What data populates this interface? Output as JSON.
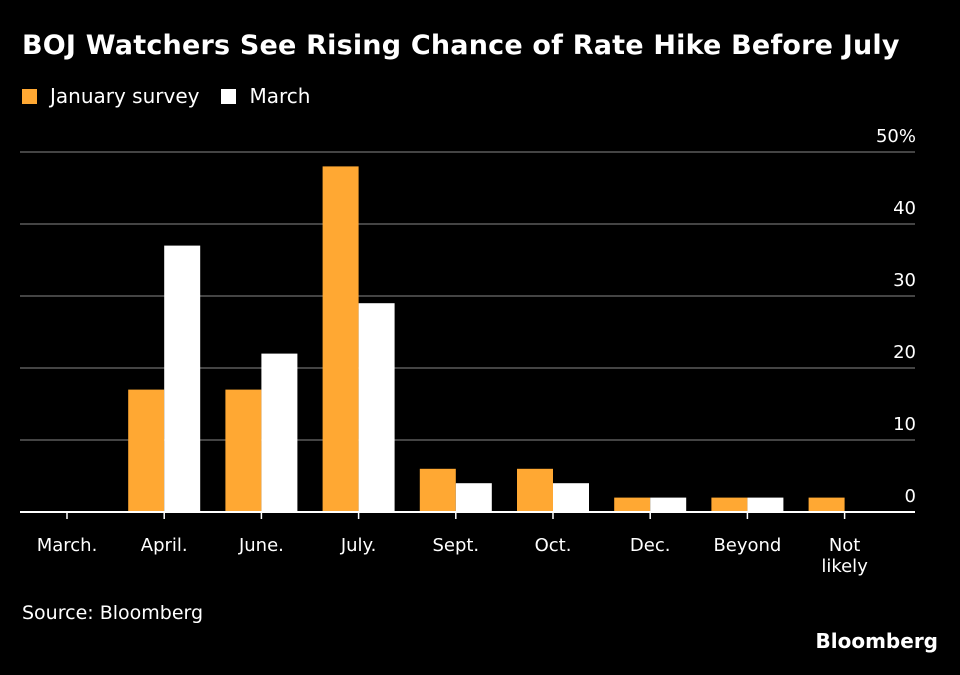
{
  "chart_data": {
    "type": "bar",
    "title": "BOJ Watchers See Rising Chance of Rate Hike Before July",
    "categories": [
      "March.",
      "April.",
      "June.",
      "July.",
      "Sept.",
      "Oct.",
      "Dec.",
      "Beyond",
      [
        "Not",
        "likely"
      ]
    ],
    "series": [
      {
        "name": "January survey",
        "color": "#FFA833",
        "values": [
          0,
          17,
          17,
          48,
          6,
          6,
          2,
          2,
          2
        ]
      },
      {
        "name": "March",
        "color": "#FFFFFF",
        "values": [
          0,
          37,
          22,
          29,
          4,
          4,
          2,
          2,
          0
        ]
      }
    ],
    "ylim": [
      0,
      50
    ],
    "yticks": [
      0,
      10,
      20,
      30,
      40,
      50
    ],
    "ytick_labels": [
      "0",
      "10",
      "20",
      "30",
      "40",
      "50%"
    ],
    "xlabel": "",
    "ylabel": "",
    "legend_position": "top-left",
    "grid": true
  },
  "footer": {
    "source": "Source: Bloomberg",
    "brand": "Bloomberg"
  }
}
